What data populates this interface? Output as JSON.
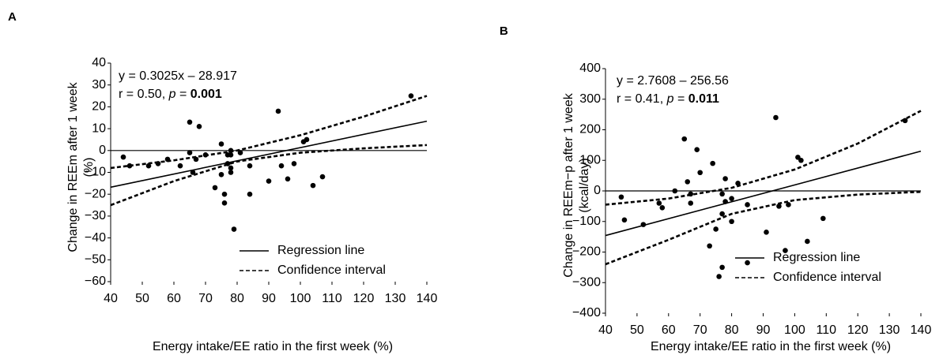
{
  "chart_data": [
    {
      "type": "scatter",
      "panel_label": "A",
      "x_label": "Energy intake/EE ratio in the first week (%)",
      "y_label": [
        "Change in REEm after 1 week",
        "(%)"
      ],
      "xlim": [
        40,
        140
      ],
      "xticks": [
        40,
        50,
        60,
        70,
        80,
        90,
        100,
        110,
        120,
        130,
        140
      ],
      "ylim": [
        -60,
        40
      ],
      "yticks": [
        {
          "value": -60,
          "label": "−60"
        },
        {
          "value": -50,
          "label": "−50"
        },
        {
          "value": -40,
          "label": "−40"
        },
        {
          "value": -30,
          "label": "−30"
        },
        {
          "value": -20,
          "label": "−20"
        },
        {
          "value": -10,
          "label": "−10"
        },
        0,
        10,
        20,
        30,
        40
      ],
      "reference_line": 0,
      "annotations": {
        "equation": "y = 0.3025x – 28.917",
        "r": "r = 0.50, ",
        "p": "p",
        "p_eq": " = ",
        "p_value": "0.001"
      },
      "points": {
        "color": "#000000",
        "x": [
          44,
          46,
          52,
          55,
          58,
          62,
          65,
          65,
          66,
          67,
          68,
          70,
          73,
          75,
          75,
          76,
          76,
          77,
          77,
          78,
          78,
          78,
          78,
          79,
          81,
          84,
          84,
          90,
          93,
          94,
          96,
          98,
          101,
          102,
          104,
          107,
          135
        ],
        "values": [
          -3,
          -7,
          -7,
          -6,
          -4,
          -7,
          13,
          -1,
          -10,
          -4,
          11,
          -2,
          -17,
          3,
          -11,
          -20,
          -24,
          -2,
          -6,
          0,
          -2,
          -10,
          -8,
          -36,
          -1,
          -20,
          -7,
          -14,
          18,
          -7,
          -13,
          -6,
          4,
          5,
          -16,
          -12,
          25
        ]
      },
      "series": [
        {
          "name": "Regression line",
          "style": "solid",
          "color": "#000000",
          "x": [
            40,
            140
          ],
          "values": [
            -16.8,
            13.43
          ]
        },
        {
          "name": "Confidence interval",
          "style": "dashed",
          "color": "#000000",
          "x": [
            40,
            60,
            80,
            100,
            120,
            140
          ],
          "values": [
            -8,
            -4.5,
            0,
            7,
            15.5,
            25
          ]
        },
        {
          "style": "dashed",
          "color": "#000000",
          "x": [
            40,
            60,
            80,
            100,
            120,
            140
          ],
          "values": [
            -25,
            -14,
            -5,
            -1,
            1,
            2.5
          ]
        }
      ]
    },
    {
      "type": "scatter",
      "panel_label": "B",
      "x_label": "Energy intake/EE ratio in the first week (%)",
      "y_label": [
        "Change in REEm−p after 1 week",
        "(kcal/day)"
      ],
      "xlim": [
        40,
        140
      ],
      "xticks": [
        40,
        50,
        60,
        70,
        80,
        90,
        100,
        110,
        120,
        130,
        140
      ],
      "ylim": [
        -400,
        400
      ],
      "yticks": [
        {
          "value": -400,
          "label": "−400"
        },
        {
          "value": -300,
          "label": "−300"
        },
        {
          "value": -200,
          "label": "−200"
        },
        {
          "value": -100,
          "label": "−100"
        },
        0,
        100,
        200,
        300,
        400
      ],
      "reference_line": 0,
      "annotations": {
        "equation": "y = 2.7608 – 256.56",
        "r": "r = 0.41, ",
        "p": "p",
        "p_eq": " = ",
        "p_value": "0.011"
      },
      "points": {
        "color": "#000000",
        "x": [
          45,
          46,
          52,
          57,
          58,
          62,
          65,
          66,
          67,
          67,
          69,
          70,
          73,
          74,
          75,
          77,
          76,
          77,
          77,
          78,
          78,
          80,
          80,
          82,
          85,
          85,
          91,
          94,
          95,
          97,
          98,
          101,
          102,
          104,
          109,
          135
        ],
        "values": [
          -20,
          -95,
          -110,
          -40,
          -55,
          0,
          170,
          30,
          -40,
          -10,
          135,
          60,
          -180,
          90,
          -125,
          -75,
          -280,
          -250,
          -10,
          -35,
          40,
          -100,
          -25,
          25,
          -45,
          -235,
          -135,
          240,
          -50,
          -195,
          -45,
          110,
          100,
          -165,
          -90,
          230
        ]
      },
      "series": [
        {
          "name": "Regression line",
          "style": "solid",
          "color": "#000000",
          "x": [
            40,
            140
          ],
          "values": [
            -146,
            130
          ]
        },
        {
          "name": "Confidence interval",
          "style": "dashed",
          "color": "#000000",
          "x": [
            40,
            60,
            80,
            100,
            120,
            140
          ],
          "values": [
            -45,
            -25,
            10,
            70,
            155,
            262
          ]
        },
        {
          "style": "dashed",
          "color": "#000000",
          "x": [
            40,
            60,
            80,
            100,
            120,
            140
          ],
          "values": [
            -240,
            -160,
            -75,
            -30,
            -12,
            -3
          ]
        }
      ]
    }
  ]
}
